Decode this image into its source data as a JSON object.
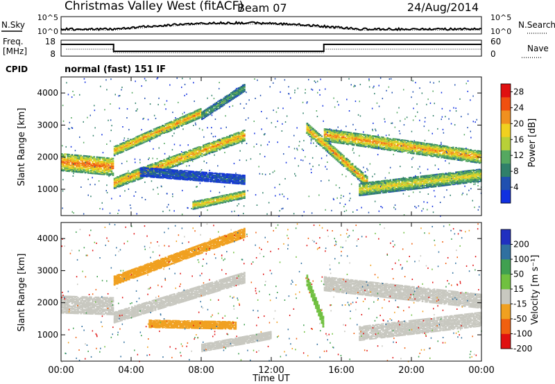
{
  "header": {
    "station": "Christmas Valley West (fitACF)",
    "beam": "Beam 07",
    "date": "24/Aug/2014"
  },
  "noise_panel": {
    "left_label": "N.Sky",
    "right_label": "N.Search",
    "left_ticks": [
      "10^5",
      "10^0"
    ],
    "right_ticks": [
      "10^5",
      "10^0"
    ]
  },
  "freq_panel": {
    "left_label_1": "Freq.",
    "left_label_2": "[MHz]",
    "right_label": "Nave",
    "left_ticks": [
      "18",
      "8"
    ],
    "right_ticks": [
      "60",
      "0"
    ]
  },
  "cpid": {
    "label": "CPID",
    "value": "normal (fast) 151 IF"
  },
  "chart_data": [
    {
      "type": "heatmap",
      "name": "power",
      "ylabel": "Slant Range [km]",
      "xlabel": "Time UT",
      "x_range": [
        "00:00",
        "24:00"
      ],
      "ylim": [
        180,
        4500
      ],
      "y_ticks": [
        1000,
        2000,
        3000,
        4000
      ],
      "x_ticks": [
        "00:00",
        "04:00",
        "08:00",
        "12:00",
        "16:00",
        "20:00",
        "00:00"
      ],
      "colorbar": {
        "label": "Power [dB]",
        "ticks": [
          4,
          8,
          12,
          16,
          20,
          24,
          28
        ],
        "range": [
          0,
          30
        ],
        "colors": [
          "#1030e0",
          "#2050b0",
          "#30806a",
          "#55a860",
          "#b8d038",
          "#f0d020",
          "#f09020",
          "#f05010",
          "#e01010"
        ]
      },
      "bands": [
        {
          "start_h": 0.0,
          "end_h": 3.0,
          "r0": 1850,
          "r1": 1700,
          "width": 550,
          "value": 24
        },
        {
          "start_h": 3.0,
          "end_h": 10.5,
          "r0": 1200,
          "r1": 2700,
          "width": 350,
          "value": 22
        },
        {
          "start_h": 3.0,
          "end_h": 8.0,
          "r0": 2200,
          "r1": 3400,
          "width": 300,
          "value": 22
        },
        {
          "start_h": 8.0,
          "end_h": 10.5,
          "r0": 3300,
          "r1": 4200,
          "width": 250,
          "value": 12
        },
        {
          "start_h": 4.5,
          "end_h": 10.5,
          "r0": 1550,
          "r1": 1300,
          "width": 300,
          "value": 6
        },
        {
          "start_h": 7.5,
          "end_h": 10.5,
          "r0": 500,
          "r1": 850,
          "width": 250,
          "value": 20
        },
        {
          "start_h": 14.0,
          "end_h": 17.5,
          "r0": 2900,
          "r1": 1200,
          "width": 350,
          "value": 22
        },
        {
          "start_h": 15.0,
          "end_h": 24.0,
          "r0": 2700,
          "r1": 2000,
          "width": 400,
          "value": 22
        },
        {
          "start_h": 17.0,
          "end_h": 24.0,
          "r0": 1000,
          "r1": 1450,
          "width": 400,
          "value": 18
        }
      ]
    },
    {
      "type": "heatmap",
      "name": "velocity",
      "ylabel": "Slant Range [km]",
      "xlabel": "Time UT",
      "ylim": [
        180,
        4500
      ],
      "y_ticks": [
        1000,
        2000,
        3000,
        4000
      ],
      "colorbar": {
        "label": "Velocity [m s⁻¹]",
        "ticks": [
          200,
          100,
          50,
          15,
          -15,
          -50,
          -100,
          -200
        ],
        "colors": [
          "#2030c0",
          "#3070a0",
          "#40a050",
          "#70c040",
          "#c8c8c0",
          "#f0a020",
          "#f06010",
          "#e01010"
        ]
      },
      "bands": [
        {
          "start_h": 0.0,
          "end_h": 3.0,
          "r0": 1950,
          "r1": 1900,
          "width": 550,
          "value": 0
        },
        {
          "start_h": 3.0,
          "end_h": 10.5,
          "r0": 1550,
          "r1": 2800,
          "width": 350,
          "value": 0
        },
        {
          "start_h": 3.0,
          "end_h": 10.5,
          "r0": 2700,
          "r1": 4200,
          "width": 300,
          "value": -40
        },
        {
          "start_h": 5.0,
          "end_h": 10.0,
          "r0": 1350,
          "r1": 1300,
          "width": 250,
          "value": -40
        },
        {
          "start_h": 8.0,
          "end_h": 12.0,
          "r0": 600,
          "r1": 1000,
          "width": 250,
          "value": 0
        },
        {
          "start_h": 14.0,
          "end_h": 15.0,
          "r0": 2700,
          "r1": 1300,
          "width": 350,
          "value": 30
        },
        {
          "start_h": 15.0,
          "end_h": 24.0,
          "r0": 2600,
          "r1": 2050,
          "width": 450,
          "value": 0
        },
        {
          "start_h": 17.0,
          "end_h": 24.0,
          "r0": 1050,
          "r1": 1500,
          "width": 450,
          "value": 0
        }
      ]
    }
  ]
}
